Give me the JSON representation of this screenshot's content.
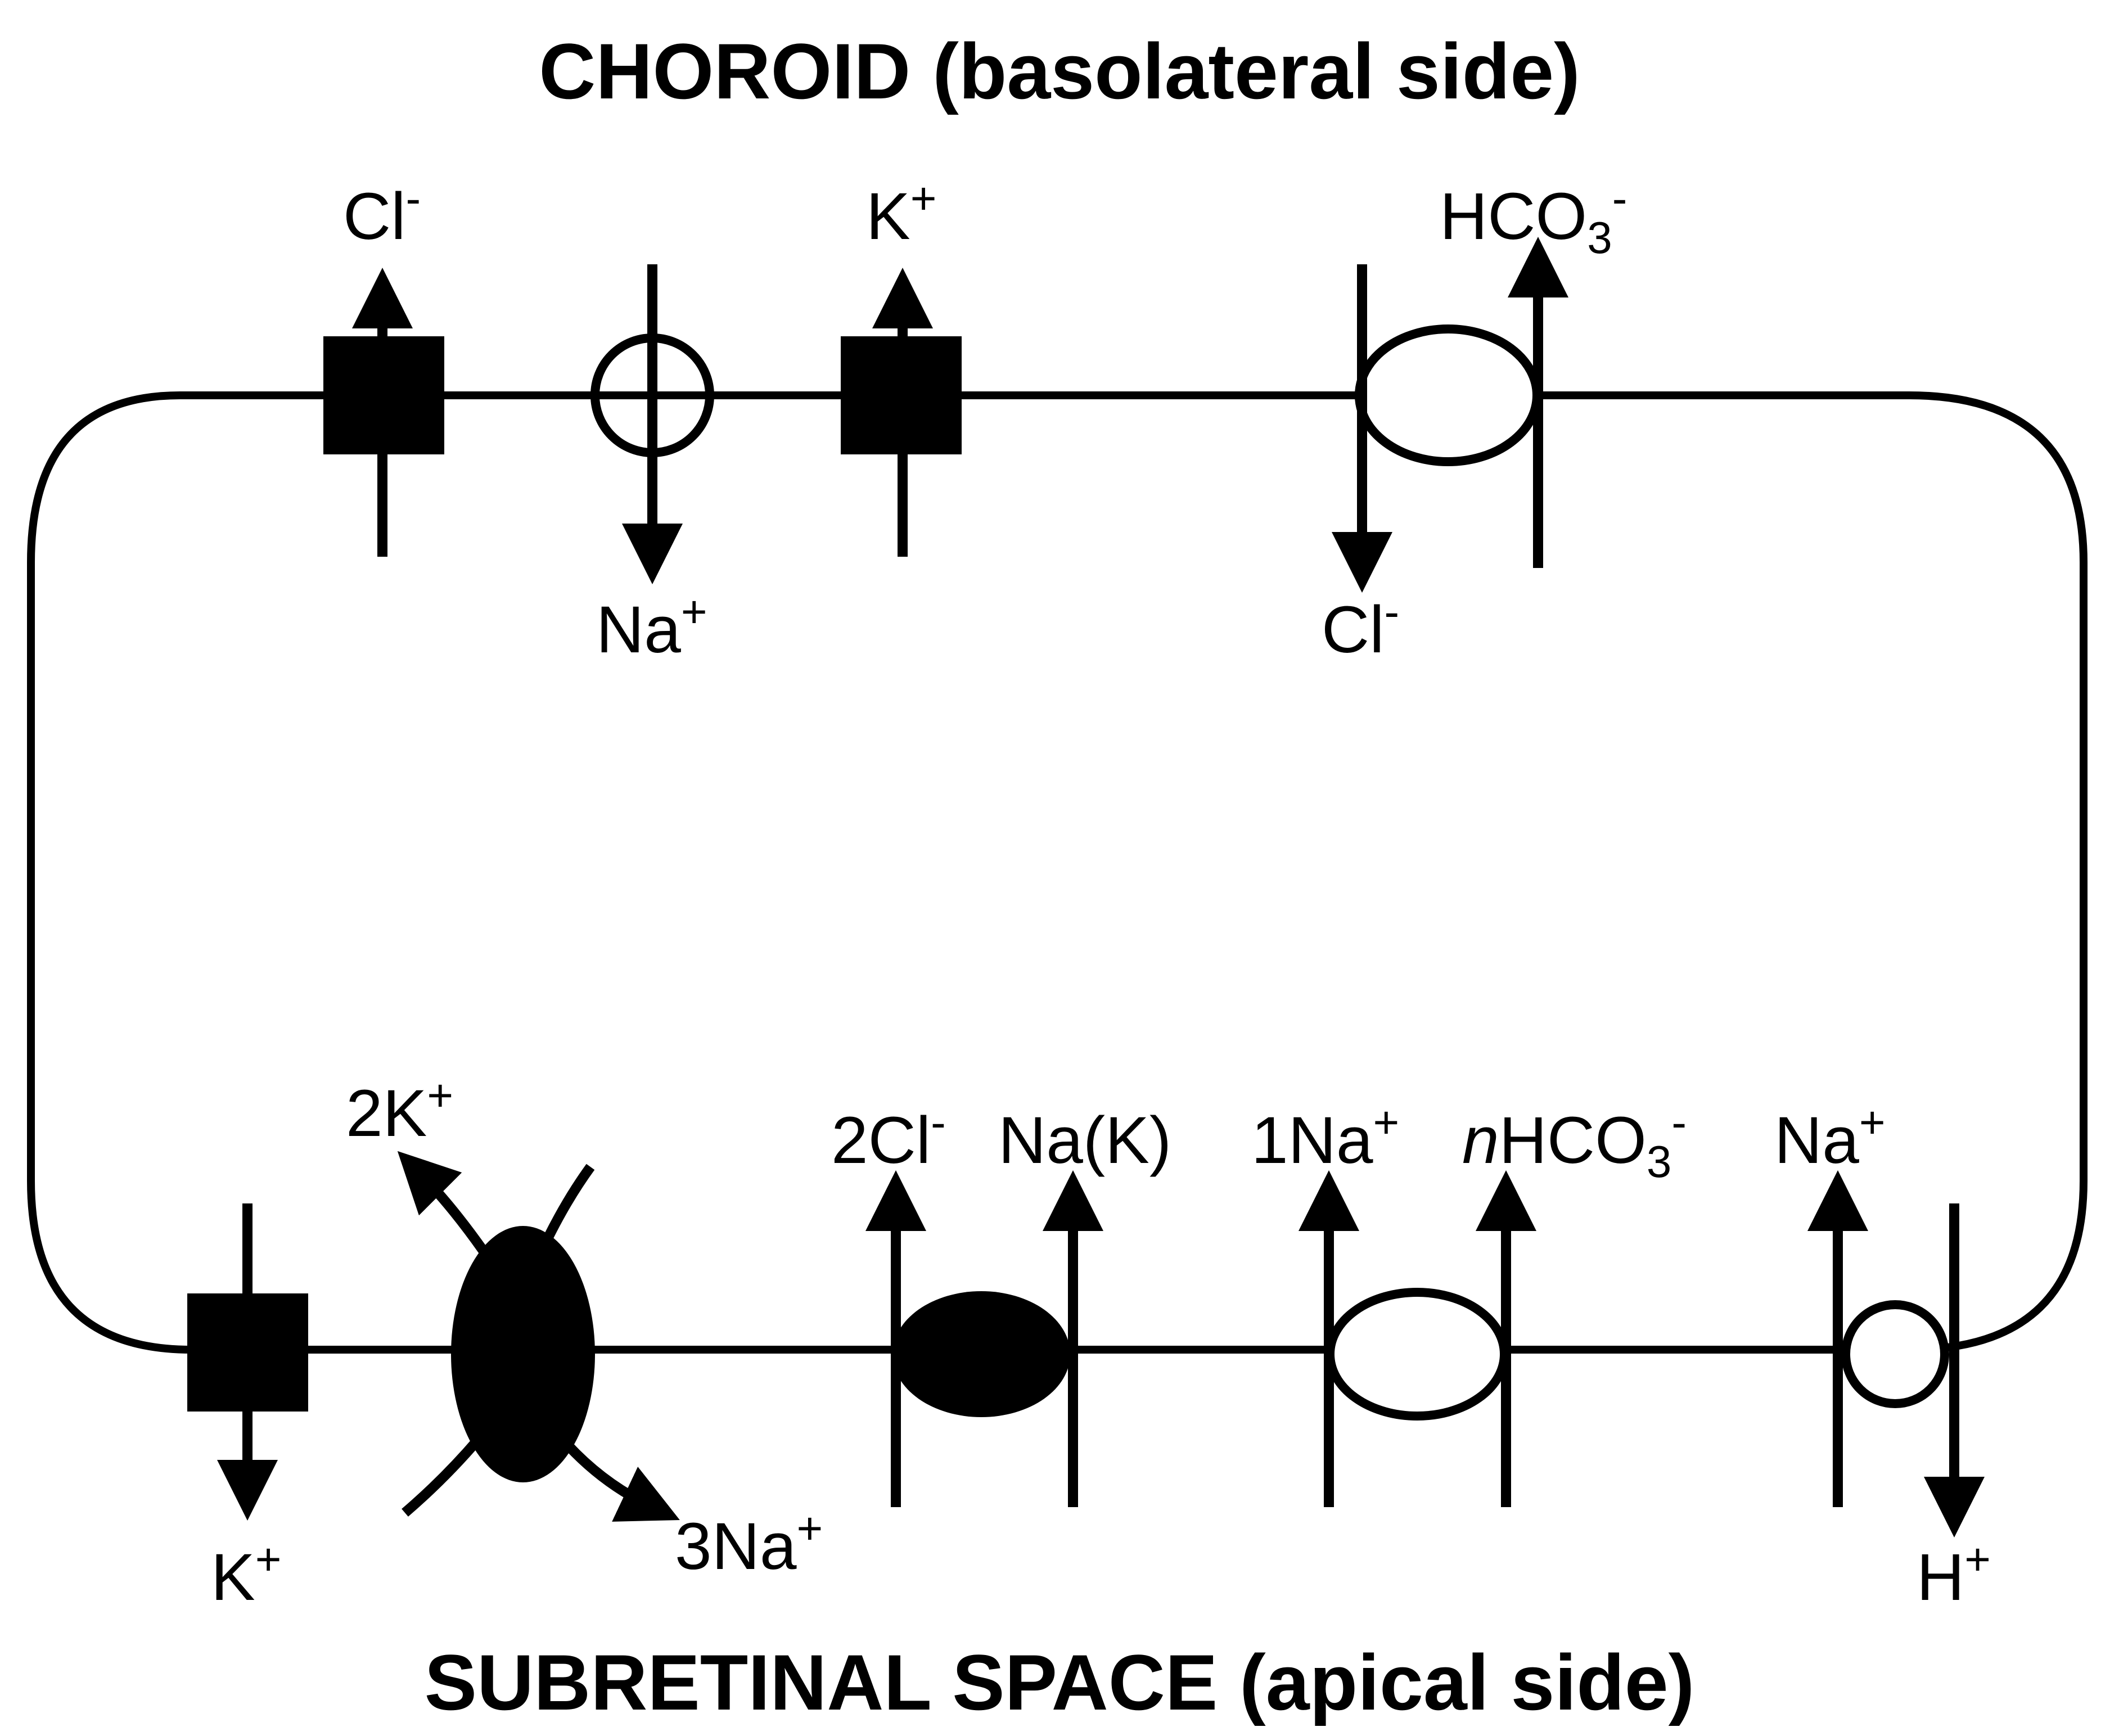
{
  "titles": {
    "top": "CHOROID (basolateral side)",
    "bottom": "SUBRETINAL SPACE (apical side)"
  },
  "basolateral": {
    "k_channel_left": {
      "ion": "Cl",
      "charge": "-"
    },
    "na_channel": {
      "ion": "Na",
      "charge": "+"
    },
    "k_channel": {
      "ion": "K",
      "charge": "+"
    },
    "exchanger": {
      "out_ion": "HCO",
      "out_sub": "3",
      "out_charge": "-",
      "in_ion": "Cl",
      "in_charge": "-"
    }
  },
  "apical": {
    "k_channel": {
      "ion": "K",
      "charge": "+"
    },
    "pump": {
      "in_ion": "2K",
      "in_charge": "+",
      "out_ion": "3Na",
      "out_charge": "+"
    },
    "cotransporter_nkcc": {
      "ion1": "2Cl",
      "ion1_charge": "-",
      "ion2": "Na(K)"
    },
    "cotransporter_nbc": {
      "ion1": "1Na",
      "ion1_charge": "+",
      "ion2_prefix": "n",
      "ion2": "HCO",
      "ion2_sub": "3",
      "ion2_charge": "-"
    },
    "exchanger_nhe": {
      "in_ion": "Na",
      "in_charge": "+",
      "out_ion": "H",
      "out_charge": "+"
    }
  },
  "colors": {
    "ink": "#000000",
    "background": "#ffffff"
  }
}
